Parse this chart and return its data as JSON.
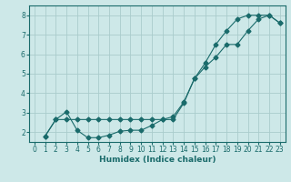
{
  "title": "",
  "xlabel": "Humidex (Indice chaleur)",
  "bg_color": "#cde8e8",
  "line_color": "#1a6b6b",
  "grid_color": "#aacccc",
  "xlim": [
    -0.5,
    23.5
  ],
  "ylim": [
    1.5,
    8.5
  ],
  "xticks": [
    0,
    1,
    2,
    3,
    4,
    5,
    6,
    7,
    8,
    9,
    10,
    11,
    12,
    13,
    14,
    15,
    16,
    17,
    18,
    19,
    20,
    21,
    22,
    23
  ],
  "yticks": [
    2,
    3,
    4,
    5,
    6,
    7,
    8
  ],
  "line1_x": [
    1,
    2,
    3,
    4,
    5,
    6,
    7,
    8,
    9,
    10,
    11,
    12,
    13,
    14,
    15,
    16,
    17,
    18,
    19,
    20,
    21,
    22,
    23
  ],
  "line1_y": [
    1.8,
    2.65,
    3.05,
    2.1,
    1.72,
    1.72,
    1.85,
    2.05,
    2.1,
    2.1,
    2.35,
    2.65,
    2.8,
    3.55,
    4.75,
    5.35,
    5.85,
    6.5,
    6.5,
    7.2,
    7.8,
    8.0,
    7.6
  ],
  "line2_x": [
    1,
    2,
    3,
    4,
    5,
    6,
    7,
    8,
    9,
    10,
    11,
    12,
    13,
    14,
    15,
    16,
    17,
    18,
    19,
    20,
    21,
    22,
    23
  ],
  "line2_y": [
    1.8,
    2.65,
    2.65,
    2.65,
    2.65,
    2.65,
    2.65,
    2.65,
    2.65,
    2.65,
    2.65,
    2.65,
    2.65,
    3.5,
    4.75,
    5.55,
    6.5,
    7.2,
    7.8,
    8.0,
    8.0,
    8.0,
    7.6
  ],
  "tick_fontsize": 5.5,
  "xlabel_fontsize": 6.5,
  "marker_size": 2.5,
  "line_width": 0.8
}
